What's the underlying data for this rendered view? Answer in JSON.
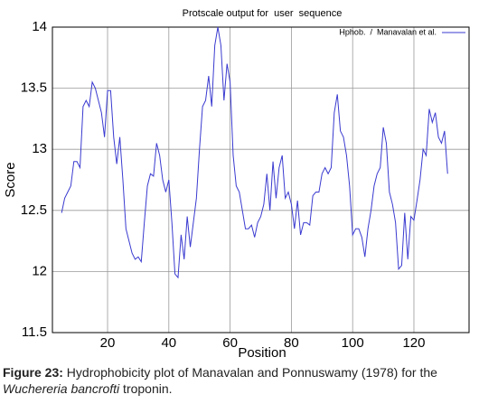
{
  "chart_data": {
    "type": "line",
    "title": "Protscale output for  user  sequence",
    "xlabel": "Position",
    "ylabel": "Score",
    "x": [
      5,
      6,
      7,
      8,
      9,
      10,
      11,
      12,
      13,
      14,
      15,
      16,
      17,
      18,
      19,
      20,
      21,
      22,
      23,
      24,
      25,
      26,
      27,
      28,
      29,
      30,
      31,
      32,
      33,
      34,
      35,
      36,
      37,
      38,
      39,
      40,
      41,
      42,
      43,
      44,
      45,
      46,
      47,
      48,
      49,
      50,
      51,
      52,
      53,
      54,
      55,
      56,
      57,
      58,
      59,
      60,
      61,
      62,
      63,
      64,
      65,
      66,
      67,
      68,
      69,
      70,
      71,
      72,
      73,
      74,
      75,
      76,
      77,
      78,
      79,
      80,
      81,
      82,
      83,
      84,
      85,
      86,
      87,
      88,
      89,
      90,
      91,
      92,
      93,
      94,
      95,
      96,
      97,
      98,
      99,
      100,
      101,
      102,
      103,
      104,
      105,
      106,
      107,
      108,
      109,
      110,
      111,
      112,
      113,
      114,
      115,
      116,
      117,
      118,
      119,
      120,
      121,
      122,
      123,
      124,
      125,
      126,
      127,
      128,
      129,
      130,
      131
    ],
    "series": [
      {
        "name": "Hphob.  /  Manavalan et al.",
        "color": "#3a3ad0",
        "values": [
          12.48,
          12.6,
          12.65,
          12.7,
          12.9,
          12.9,
          12.85,
          13.35,
          13.4,
          13.35,
          13.55,
          13.5,
          13.4,
          13.3,
          13.1,
          13.48,
          13.48,
          13.1,
          12.88,
          13.1,
          12.75,
          12.35,
          12.25,
          12.15,
          12.1,
          12.12,
          12.08,
          12.4,
          12.7,
          12.8,
          12.78,
          13.05,
          12.95,
          12.75,
          12.65,
          12.75,
          12.4,
          11.98,
          11.95,
          12.3,
          12.1,
          12.45,
          12.2,
          12.4,
          12.6,
          13.0,
          13.35,
          13.4,
          13.6,
          13.35,
          13.85,
          14.0,
          13.85,
          13.4,
          13.7,
          13.55,
          12.95,
          12.7,
          12.65,
          12.5,
          12.35,
          12.35,
          12.38,
          12.28,
          12.4,
          12.45,
          12.55,
          12.8,
          12.5,
          12.9,
          12.6,
          12.85,
          12.95,
          12.6,
          12.65,
          12.55,
          12.35,
          12.58,
          12.3,
          12.4,
          12.4,
          12.38,
          12.62,
          12.65,
          12.65,
          12.8,
          12.85,
          12.8,
          12.85,
          13.3,
          13.45,
          13.15,
          13.1,
          12.95,
          12.7,
          12.3,
          12.35,
          12.35,
          12.28,
          12.12,
          12.35,
          12.5,
          12.7,
          12.8,
          12.85,
          13.18,
          13.05,
          12.65,
          12.55,
          12.4,
          12.02,
          12.05,
          12.48,
          12.1,
          12.45,
          12.42,
          12.58,
          12.75,
          13.0,
          12.95,
          13.33,
          13.22,
          13.3,
          13.1,
          13.05,
          13.15,
          12.8
        ]
      }
    ],
    "xlim": [
      2,
      138
    ],
    "ylim": [
      11.5,
      14
    ],
    "xticks": [
      20,
      40,
      60,
      80,
      100,
      120
    ],
    "yticks": [
      11.5,
      12,
      12.5,
      13,
      13.5,
      14
    ],
    "grid": true,
    "legend": "upper right"
  },
  "caption": {
    "label": "Figure 23:",
    "text": " Hydrophobicity plot of Manavalan and Ponnuswamy (1978) for the",
    "species": "Wuchereria bancrofti",
    "tail": " troponin."
  }
}
